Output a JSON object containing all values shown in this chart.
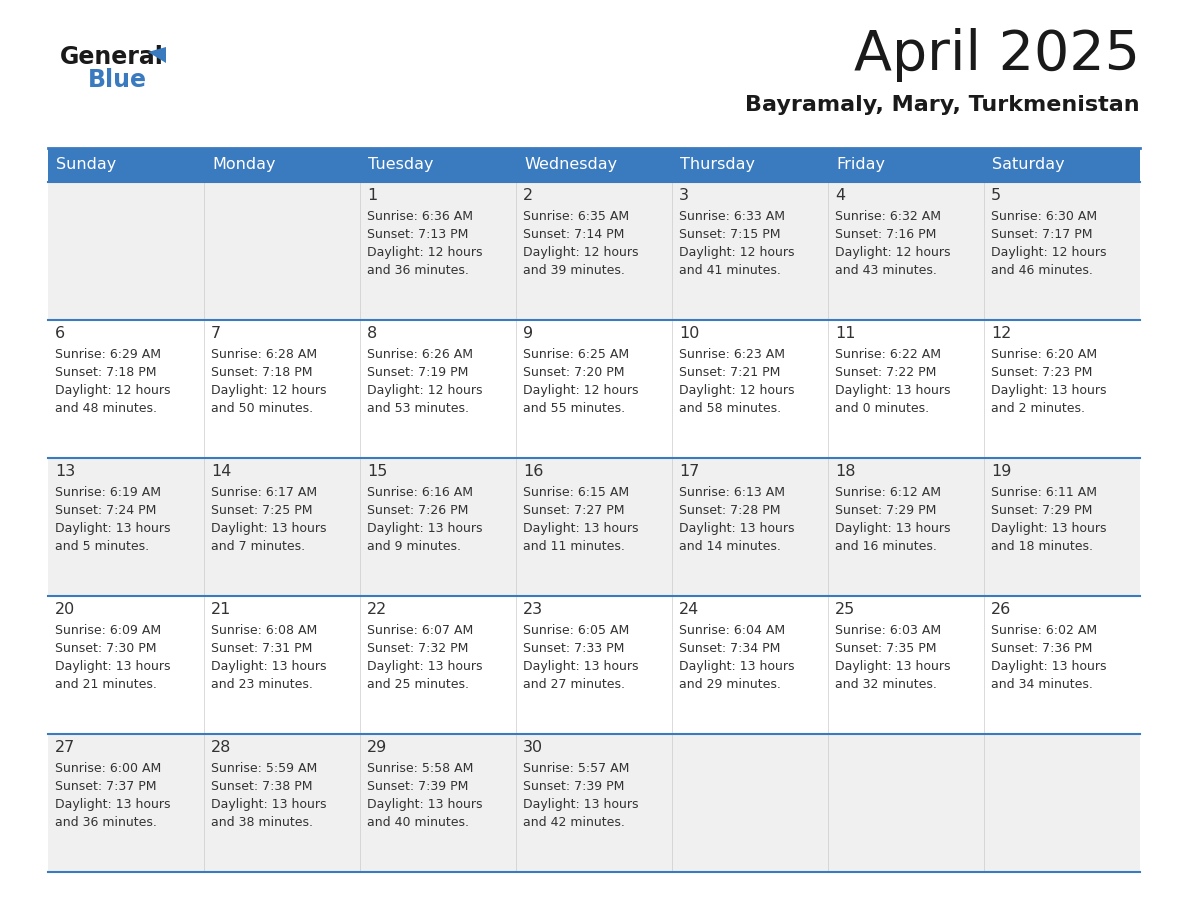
{
  "title": "April 2025",
  "subtitle": "Bayramaly, Mary, Turkmenistan",
  "days_of_week": [
    "Sunday",
    "Monday",
    "Tuesday",
    "Wednesday",
    "Thursday",
    "Friday",
    "Saturday"
  ],
  "header_bg": "#3a7abf",
  "header_text": "#ffffff",
  "row_bg_even": "#f0f0f0",
  "row_bg_odd": "#ffffff",
  "cell_border": "#3a7abf",
  "day_number_color": "#333333",
  "text_color": "#333333",
  "title_color": "#222222",
  "calendar_data": [
    [
      {
        "day": "",
        "sunrise": "",
        "sunset": "",
        "daylight": ""
      },
      {
        "day": "",
        "sunrise": "",
        "sunset": "",
        "daylight": ""
      },
      {
        "day": "1",
        "sunrise": "Sunrise: 6:36 AM",
        "sunset": "Sunset: 7:13 PM",
        "daylight": "Daylight: 12 hours\nand 36 minutes."
      },
      {
        "day": "2",
        "sunrise": "Sunrise: 6:35 AM",
        "sunset": "Sunset: 7:14 PM",
        "daylight": "Daylight: 12 hours\nand 39 minutes."
      },
      {
        "day": "3",
        "sunrise": "Sunrise: 6:33 AM",
        "sunset": "Sunset: 7:15 PM",
        "daylight": "Daylight: 12 hours\nand 41 minutes."
      },
      {
        "day": "4",
        "sunrise": "Sunrise: 6:32 AM",
        "sunset": "Sunset: 7:16 PM",
        "daylight": "Daylight: 12 hours\nand 43 minutes."
      },
      {
        "day": "5",
        "sunrise": "Sunrise: 6:30 AM",
        "sunset": "Sunset: 7:17 PM",
        "daylight": "Daylight: 12 hours\nand 46 minutes."
      }
    ],
    [
      {
        "day": "6",
        "sunrise": "Sunrise: 6:29 AM",
        "sunset": "Sunset: 7:18 PM",
        "daylight": "Daylight: 12 hours\nand 48 minutes."
      },
      {
        "day": "7",
        "sunrise": "Sunrise: 6:28 AM",
        "sunset": "Sunset: 7:18 PM",
        "daylight": "Daylight: 12 hours\nand 50 minutes."
      },
      {
        "day": "8",
        "sunrise": "Sunrise: 6:26 AM",
        "sunset": "Sunset: 7:19 PM",
        "daylight": "Daylight: 12 hours\nand 53 minutes."
      },
      {
        "day": "9",
        "sunrise": "Sunrise: 6:25 AM",
        "sunset": "Sunset: 7:20 PM",
        "daylight": "Daylight: 12 hours\nand 55 minutes."
      },
      {
        "day": "10",
        "sunrise": "Sunrise: 6:23 AM",
        "sunset": "Sunset: 7:21 PM",
        "daylight": "Daylight: 12 hours\nand 58 minutes."
      },
      {
        "day": "11",
        "sunrise": "Sunrise: 6:22 AM",
        "sunset": "Sunset: 7:22 PM",
        "daylight": "Daylight: 13 hours\nand 0 minutes."
      },
      {
        "day": "12",
        "sunrise": "Sunrise: 6:20 AM",
        "sunset": "Sunset: 7:23 PM",
        "daylight": "Daylight: 13 hours\nand 2 minutes."
      }
    ],
    [
      {
        "day": "13",
        "sunrise": "Sunrise: 6:19 AM",
        "sunset": "Sunset: 7:24 PM",
        "daylight": "Daylight: 13 hours\nand 5 minutes."
      },
      {
        "day": "14",
        "sunrise": "Sunrise: 6:17 AM",
        "sunset": "Sunset: 7:25 PM",
        "daylight": "Daylight: 13 hours\nand 7 minutes."
      },
      {
        "day": "15",
        "sunrise": "Sunrise: 6:16 AM",
        "sunset": "Sunset: 7:26 PM",
        "daylight": "Daylight: 13 hours\nand 9 minutes."
      },
      {
        "day": "16",
        "sunrise": "Sunrise: 6:15 AM",
        "sunset": "Sunset: 7:27 PM",
        "daylight": "Daylight: 13 hours\nand 11 minutes."
      },
      {
        "day": "17",
        "sunrise": "Sunrise: 6:13 AM",
        "sunset": "Sunset: 7:28 PM",
        "daylight": "Daylight: 13 hours\nand 14 minutes."
      },
      {
        "day": "18",
        "sunrise": "Sunrise: 6:12 AM",
        "sunset": "Sunset: 7:29 PM",
        "daylight": "Daylight: 13 hours\nand 16 minutes."
      },
      {
        "day": "19",
        "sunrise": "Sunrise: 6:11 AM",
        "sunset": "Sunset: 7:29 PM",
        "daylight": "Daylight: 13 hours\nand 18 minutes."
      }
    ],
    [
      {
        "day": "20",
        "sunrise": "Sunrise: 6:09 AM",
        "sunset": "Sunset: 7:30 PM",
        "daylight": "Daylight: 13 hours\nand 21 minutes."
      },
      {
        "day": "21",
        "sunrise": "Sunrise: 6:08 AM",
        "sunset": "Sunset: 7:31 PM",
        "daylight": "Daylight: 13 hours\nand 23 minutes."
      },
      {
        "day": "22",
        "sunrise": "Sunrise: 6:07 AM",
        "sunset": "Sunset: 7:32 PM",
        "daylight": "Daylight: 13 hours\nand 25 minutes."
      },
      {
        "day": "23",
        "sunrise": "Sunrise: 6:05 AM",
        "sunset": "Sunset: 7:33 PM",
        "daylight": "Daylight: 13 hours\nand 27 minutes."
      },
      {
        "day": "24",
        "sunrise": "Sunrise: 6:04 AM",
        "sunset": "Sunset: 7:34 PM",
        "daylight": "Daylight: 13 hours\nand 29 minutes."
      },
      {
        "day": "25",
        "sunrise": "Sunrise: 6:03 AM",
        "sunset": "Sunset: 7:35 PM",
        "daylight": "Daylight: 13 hours\nand 32 minutes."
      },
      {
        "day": "26",
        "sunrise": "Sunrise: 6:02 AM",
        "sunset": "Sunset: 7:36 PM",
        "daylight": "Daylight: 13 hours\nand 34 minutes."
      }
    ],
    [
      {
        "day": "27",
        "sunrise": "Sunrise: 6:00 AM",
        "sunset": "Sunset: 7:37 PM",
        "daylight": "Daylight: 13 hours\nand 36 minutes."
      },
      {
        "day": "28",
        "sunrise": "Sunrise: 5:59 AM",
        "sunset": "Sunset: 7:38 PM",
        "daylight": "Daylight: 13 hours\nand 38 minutes."
      },
      {
        "day": "29",
        "sunrise": "Sunrise: 5:58 AM",
        "sunset": "Sunset: 7:39 PM",
        "daylight": "Daylight: 13 hours\nand 40 minutes."
      },
      {
        "day": "30",
        "sunrise": "Sunrise: 5:57 AM",
        "sunset": "Sunset: 7:39 PM",
        "daylight": "Daylight: 13 hours\nand 42 minutes."
      },
      {
        "day": "",
        "sunrise": "",
        "sunset": "",
        "daylight": ""
      },
      {
        "day": "",
        "sunrise": "",
        "sunset": "",
        "daylight": ""
      },
      {
        "day": "",
        "sunrise": "",
        "sunset": "",
        "daylight": ""
      }
    ]
  ]
}
